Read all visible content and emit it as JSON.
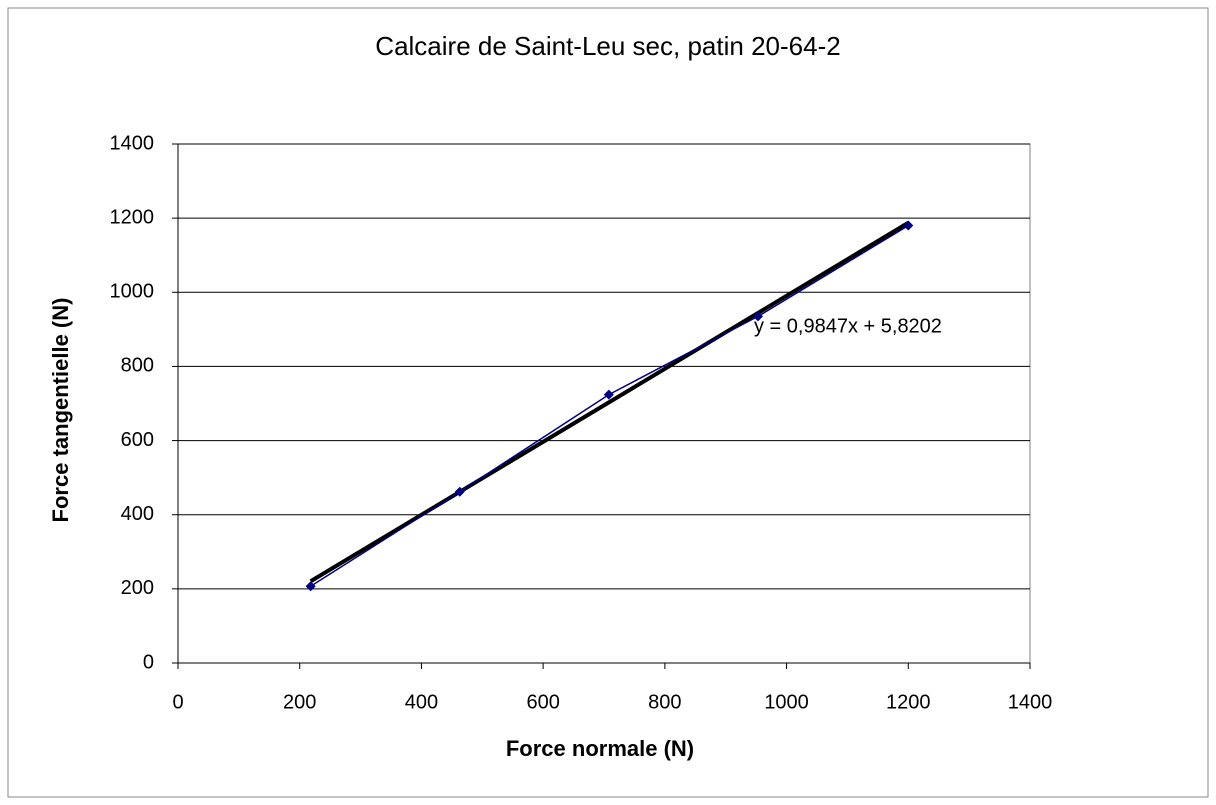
{
  "chart_data": {
    "type": "scatter",
    "title": "Calcaire de Saint-Leu sec, patin 20-64-2",
    "x_label": "Force normale  (N)",
    "y_label": "Force tangentielle  (N)",
    "series": [
      {
        "x": [
          218,
          463,
          708,
          953,
          1200
        ],
        "values": [
          207,
          462,
          724,
          935,
          1180
        ],
        "color": "#000080"
      }
    ],
    "trendline": {
      "x": [
        218,
        1200
      ],
      "values": [
        220.5,
        1187.5
      ],
      "color": "#000000",
      "label": "y = 0,9847x  + 5,8202"
    },
    "xlim": [
      0,
      1400
    ],
    "xticks": [
      0,
      200,
      400,
      600,
      800,
      1000,
      1200,
      1400
    ],
    "ylim": [
      0,
      1400
    ],
    "yticks": [
      0,
      200,
      400,
      600,
      800,
      1000,
      1200,
      1400
    ],
    "grid": true
  }
}
